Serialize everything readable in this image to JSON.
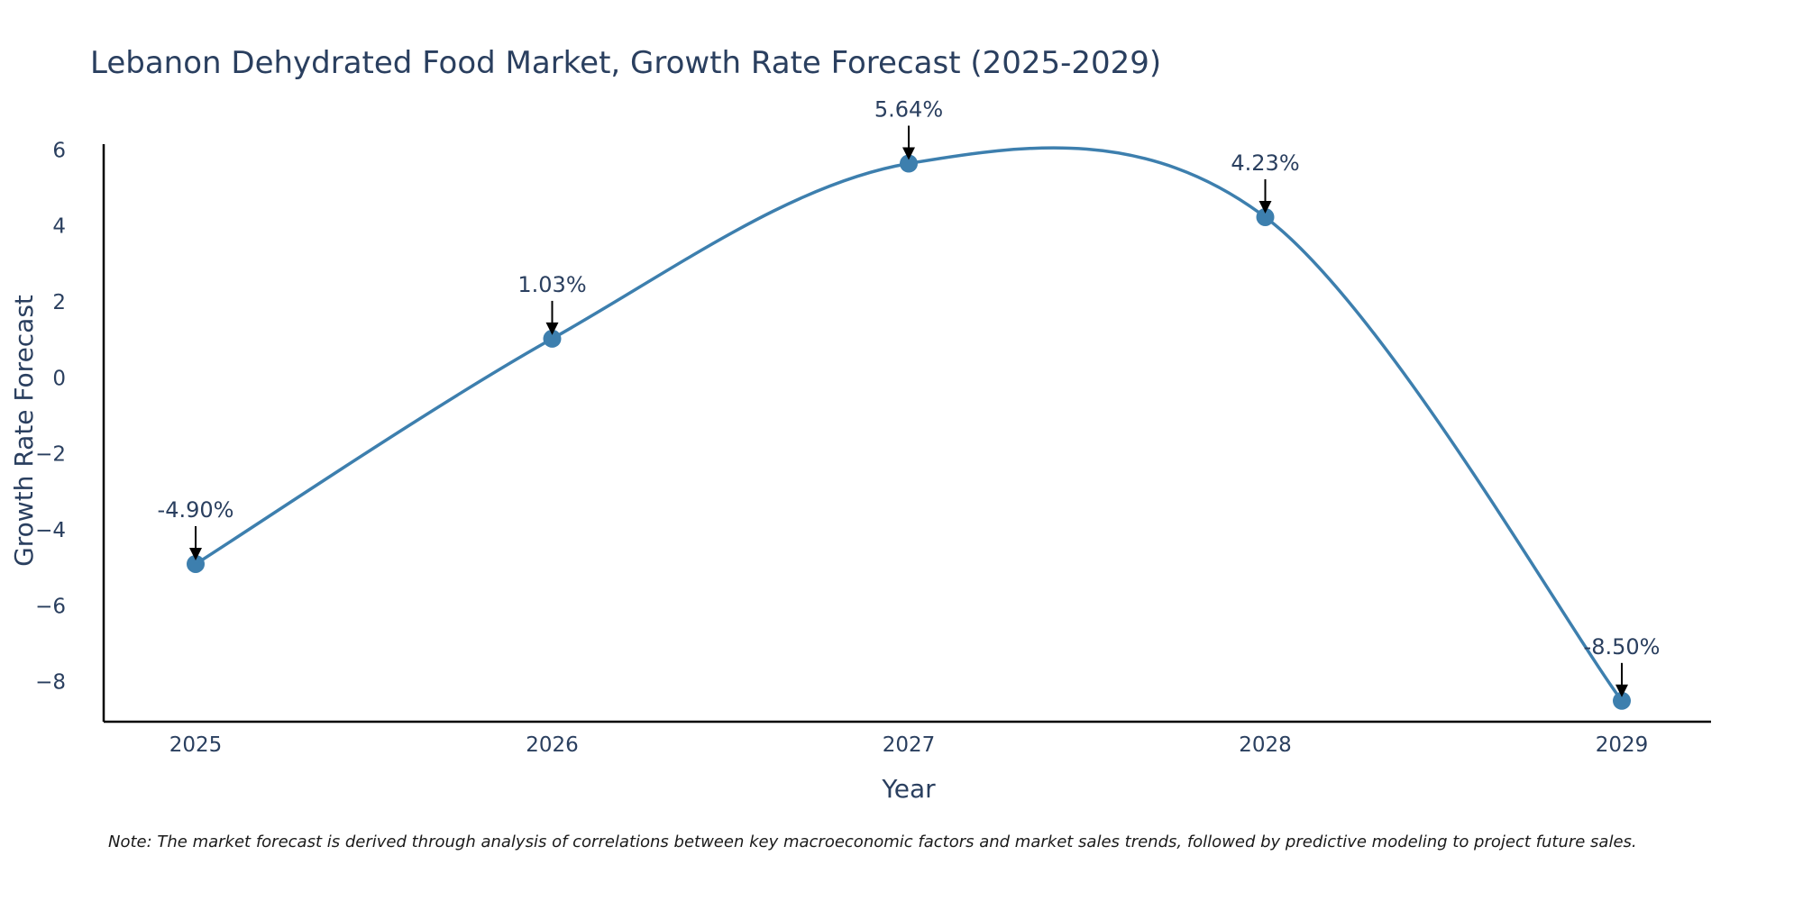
{
  "chart_data": {
    "type": "line",
    "title": "Lebanon Dehydrated Food Market, Growth Rate Forecast (2025-2029)",
    "xlabel": "Year",
    "ylabel": "Growth Rate Forecast",
    "categories": [
      "2025",
      "2026",
      "2027",
      "2028",
      "2029"
    ],
    "series": [
      {
        "name": "Growth Rate Forecast",
        "values": [
          -4.9,
          1.03,
          5.64,
          4.23,
          -8.5
        ],
        "color": "#3d7fae",
        "line_shape": "spline"
      }
    ],
    "data_labels": [
      "-4.90%",
      "1.03%",
      "5.64%",
      "4.23%",
      "-8.50%"
    ],
    "yticks": [
      6,
      4,
      2,
      0,
      -2,
      -4,
      -6,
      -8
    ],
    "ytick_labels": [
      "6",
      "4",
      "2",
      "0",
      "−2",
      "−4",
      "−6",
      "−8"
    ],
    "ylim": [
      -9.05,
      6.15
    ],
    "grid": false,
    "note": "Note: The market forecast is derived through analysis of correlations between key macroeconomic factors and market sales trends, followed by predictive modeling to project future sales."
  }
}
